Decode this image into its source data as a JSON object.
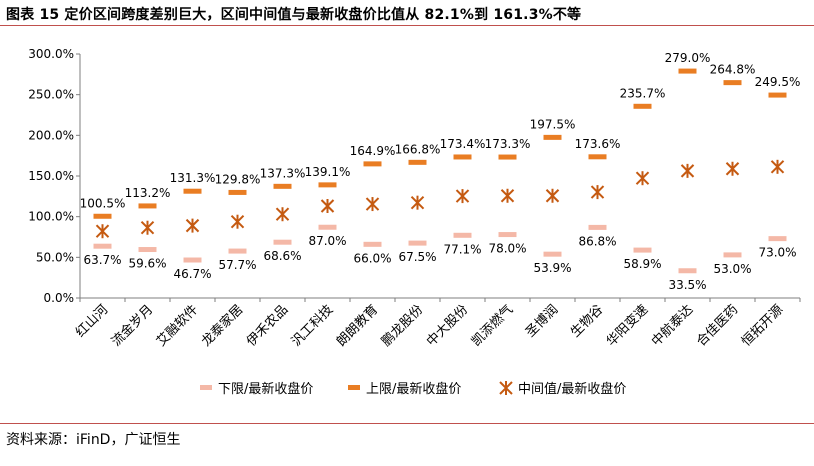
{
  "header": {
    "title": "图表 15 定价区间跨度差别巨大，区间中间值与最新收盘价比值从 82.1%到 161.3%不等"
  },
  "footer": {
    "source": "资料来源：iFinD，广证恒生"
  },
  "colors": {
    "upper": "#e97d23",
    "lower": "#f4b8a7",
    "mid": "#c55a11",
    "rule": "#c0504d"
  },
  "chart_data": {
    "type": "scatter",
    "categories": [
      "红山河",
      "流金岁月",
      "艾融软件",
      "龙泰家居",
      "伊禾农品",
      "汎工科技",
      "朗朗教育",
      "鹏龙股份",
      "中大股份",
      "凯添燃气",
      "圣博润",
      "生物谷",
      "华阳变速",
      "中航泰达",
      "合佳医药",
      "恒拓开源"
    ],
    "series": [
      {
        "name": "下限/最新收盘价",
        "marker": "dash",
        "values": [
          63.7,
          59.6,
          46.7,
          57.7,
          68.6,
          87.0,
          66.0,
          67.5,
          77.1,
          78.0,
          53.9,
          86.8,
          58.9,
          33.5,
          53.0,
          73.0
        ],
        "labels": [
          "63.7%",
          "59.6%",
          "46.7%",
          "57.7%",
          "68.6%",
          "87.0%",
          "66.0%",
          "67.5%",
          "77.1%",
          "78.0%",
          "53.9%",
          "86.8%",
          "58.9%",
          "33.5%",
          "53.0%",
          "73.0%"
        ]
      },
      {
        "name": "上限/最新收盘价",
        "marker": "dash",
        "values": [
          100.5,
          113.2,
          131.3,
          129.8,
          137.3,
          139.1,
          164.9,
          166.8,
          173.4,
          173.3,
          197.5,
          173.6,
          235.7,
          279.0,
          264.8,
          249.5
        ],
        "labels": [
          "100.5%",
          "113.2%",
          "131.3%",
          "129.8%",
          "137.3%",
          "139.1%",
          "164.9%",
          "166.8%",
          "173.4%",
          "173.3%",
          "197.5%",
          "173.6%",
          "235.7%",
          "279.0%",
          "264.8%",
          "249.5%"
        ]
      },
      {
        "name": "中间值/最新收盘价",
        "marker": "asterisk",
        "values": [
          82.1,
          86.4,
          89.0,
          93.8,
          103.0,
          113.1,
          115.5,
          117.2,
          125.3,
          125.7,
          125.7,
          130.2,
          147.3,
          156.3,
          158.9,
          161.3
        ]
      }
    ],
    "yticks": [
      "0.0%",
      "50.0%",
      "100.0%",
      "150.0%",
      "200.0%",
      "250.0%",
      "300.0%"
    ],
    "ylim": [
      0,
      300
    ],
    "legend_position": "bottom",
    "grid": false
  }
}
